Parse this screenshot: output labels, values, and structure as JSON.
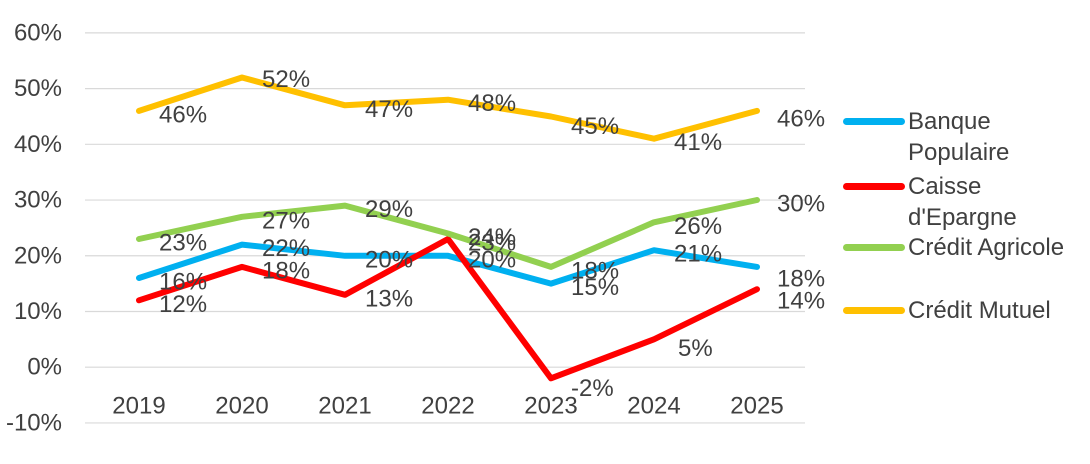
{
  "colors": {
    "text": "#404040",
    "gridline": "#D9D9D9",
    "background": "#FFFFFF"
  },
  "chart_data": {
    "type": "line",
    "title": "",
    "xlabel": "",
    "ylabel": "",
    "x_categories": [
      "2019",
      "2020",
      "2021",
      "2022",
      "2023",
      "2024",
      "2025"
    ],
    "y_ticks": [
      "60%",
      "50%",
      "40%",
      "30%",
      "20%",
      "10%",
      "0%",
      "-10%"
    ],
    "y_tick_values": [
      60,
      50,
      40,
      30,
      20,
      10,
      0,
      -10
    ],
    "ylim": [
      -10,
      60
    ],
    "grid": true,
    "legend_position": "right",
    "series": [
      {
        "name": "Banque Populaire",
        "color": "#00B0F0",
        "values": [
          16,
          22,
          20,
          20,
          15,
          21,
          18
        ],
        "labels": [
          "16%",
          "22%",
          "20%",
          "20%",
          "15%",
          "21%",
          "18%"
        ]
      },
      {
        "name": "Caisse d'Epargne",
        "color": "#FF0000",
        "values": [
          12,
          18,
          13,
          23,
          -2,
          5,
          14
        ],
        "labels": [
          "12%",
          "18%",
          "13%",
          "23%",
          "-2%",
          "5%",
          "14%"
        ]
      },
      {
        "name": "Crédit Agricole",
        "color": "#92D050",
        "values": [
          23,
          27,
          29,
          24,
          18,
          26,
          30
        ],
        "labels": [
          "23%",
          "27%",
          "29%",
          "24%",
          "18%",
          "26%",
          "30%"
        ]
      },
      {
        "name": "Crédit Mutuel",
        "color": "#FFC000",
        "values": [
          46,
          52,
          47,
          48,
          45,
          41,
          46
        ],
        "labels": [
          "46%",
          "52%",
          "47%",
          "48%",
          "45%",
          "41%",
          "46%"
        ]
      }
    ],
    "label_offsets": {
      "0": {
        "6": {
          "dy": 12
        }
      },
      "1": {
        "4": {
          "dy": 10
        },
        "5": {
          "dx": 24,
          "dy": 9
        },
        "6": {
          "dy": 12
        }
      },
      "3": {
        "1": {
          "dy": 2
        },
        "4": {
          "dy": 10
        },
        "6": {
          "dy": 8
        }
      }
    }
  }
}
